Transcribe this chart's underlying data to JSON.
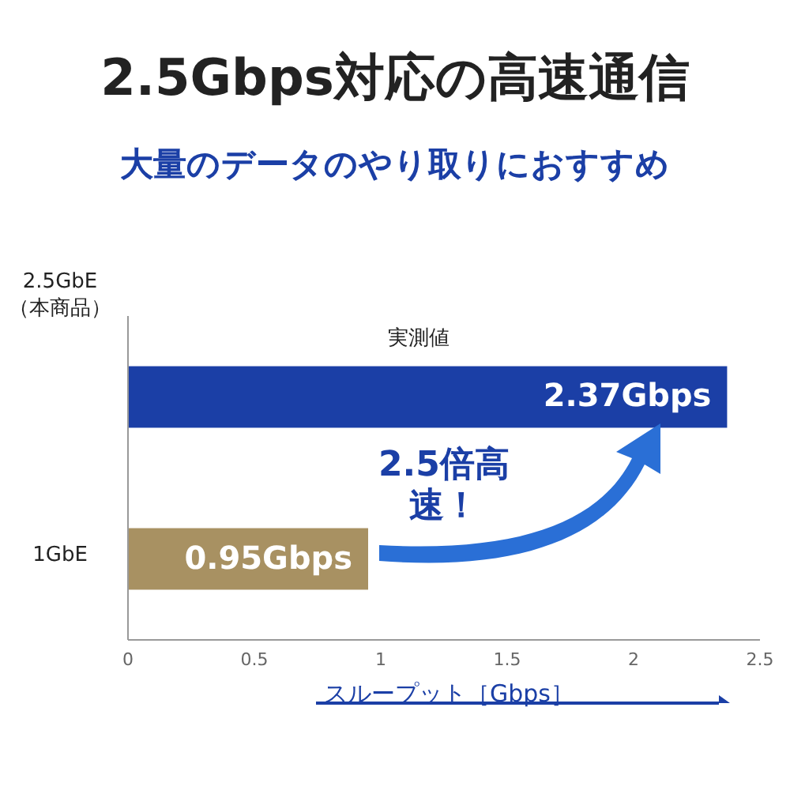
{
  "chart_data": {
    "type": "bar",
    "orientation": "horizontal",
    "title": "2.5Gbps対応の高速通信",
    "subtitle": "大量のデータのやり取りにおすすめ",
    "xlabel": "スループット［Gbps］",
    "categories": [
      "2.5GbE（本商品）",
      "1GbE"
    ],
    "values": [
      2.37,
      0.95
    ],
    "colors": [
      "#1b3fa6",
      "#a89162"
    ],
    "value_labels": [
      "2.37Gbps",
      "0.95Gbps"
    ],
    "xlim": [
      0,
      2.5
    ],
    "xticks": [
      0,
      0.5,
      1,
      1.5,
      2,
      2.5
    ],
    "annotations": [
      "実測値",
      "2.5倍高速！"
    ]
  }
}
